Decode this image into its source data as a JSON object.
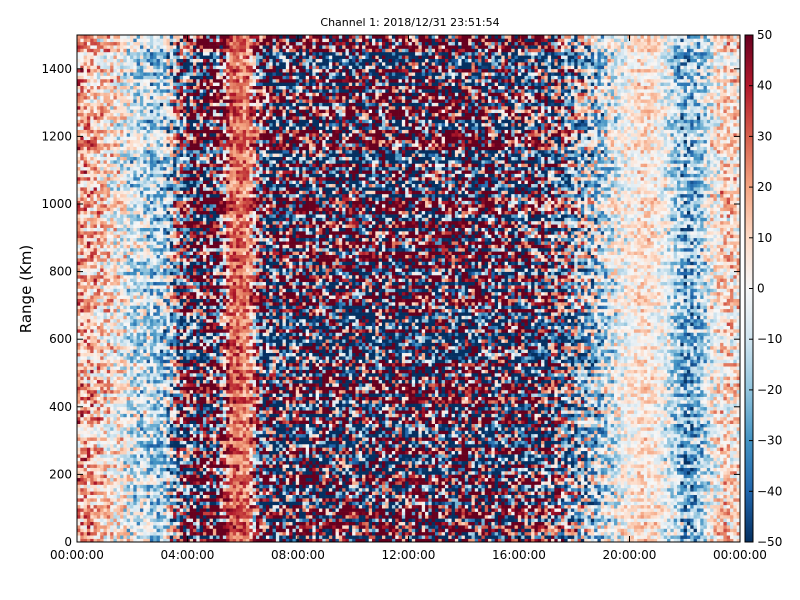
{
  "chart_data": {
    "type": "heatmap",
    "title": "Channel 1: 2018/12/31 23:51:54",
    "xlabel": "",
    "ylabel": "Range (Km)",
    "xlim": [
      "00:00:00",
      "24:00:00"
    ],
    "ylim": [
      0,
      1500
    ],
    "clim": [
      -50,
      50
    ],
    "colormap": "RdBu_r",
    "x_ticks": [
      "00:00:00",
      "04:00:00",
      "08:00:00",
      "12:00:00",
      "16:00:00",
      "20:00:00",
      "00:00:00"
    ],
    "x_tick_hours": [
      0,
      4,
      8,
      12,
      16,
      20,
      24
    ],
    "y_ticks": [
      0,
      200,
      400,
      600,
      800,
      1000,
      1200,
      1400
    ],
    "colorbar_ticks": [
      -50,
      -40,
      -30,
      -20,
      -10,
      0,
      10,
      20,
      30,
      40,
      50
    ],
    "grid": false,
    "mean_value_by_hour": [
      {
        "hour": 0.0,
        "value": 18
      },
      {
        "hour": 0.5,
        "value": 15
      },
      {
        "hour": 1.0,
        "value": 8
      },
      {
        "hour": 1.5,
        "value": 2
      },
      {
        "hour": 2.0,
        "value": -8
      },
      {
        "hour": 2.5,
        "value": -12
      },
      {
        "hour": 3.0,
        "value": -18
      },
      {
        "hour": 3.5,
        "value": -10
      },
      {
        "hour": 4.0,
        "value": 5
      },
      {
        "hour": 4.5,
        "value": 12
      },
      {
        "hour": 5.0,
        "value": 20
      },
      {
        "hour": 5.5,
        "value": 28
      },
      {
        "hour": 5.8,
        "value": 30
      },
      {
        "hour": 6.2,
        "value": 24
      },
      {
        "hour": 6.6,
        "value": 10
      },
      {
        "hour": 7.0,
        "value": -5
      },
      {
        "hour": 8.0,
        "value": 2
      },
      {
        "hour": 10.0,
        "value": 0
      },
      {
        "hour": 12.0,
        "value": 3
      },
      {
        "hour": 14.0,
        "value": 5
      },
      {
        "hour": 16.0,
        "value": 0
      },
      {
        "hour": 17.0,
        "value": -6
      },
      {
        "hour": 18.0,
        "value": -10
      },
      {
        "hour": 18.5,
        "value": -15
      },
      {
        "hour": 19.0,
        "value": -12
      },
      {
        "hour": 20.0,
        "value": 2
      },
      {
        "hour": 20.5,
        "value": 8
      },
      {
        "hour": 21.0,
        "value": 3
      },
      {
        "hour": 21.5,
        "value": -10
      },
      {
        "hour": 22.0,
        "value": -25
      },
      {
        "hour": 22.5,
        "value": -20
      },
      {
        "hour": 23.0,
        "value": 0
      },
      {
        "hour": 23.5,
        "value": 10
      },
      {
        "hour": 24.0,
        "value": 5
      }
    ],
    "spread_by_hour": [
      {
        "hour": 0.0,
        "value": 20
      },
      {
        "hour": 3.0,
        "value": 20
      },
      {
        "hour": 3.5,
        "value": 40
      },
      {
        "hour": 4.0,
        "value": 75
      },
      {
        "hour": 5.0,
        "value": 85
      },
      {
        "hour": 5.6,
        "value": 12
      },
      {
        "hour": 6.2,
        "value": 12
      },
      {
        "hour": 6.8,
        "value": 85
      },
      {
        "hour": 8.0,
        "value": 90
      },
      {
        "hour": 12.0,
        "value": 90
      },
      {
        "hour": 16.0,
        "value": 85
      },
      {
        "hour": 17.0,
        "value": 70
      },
      {
        "hour": 18.0,
        "value": 45
      },
      {
        "hour": 19.0,
        "value": 25
      },
      {
        "hour": 20.0,
        "value": 12
      },
      {
        "hour": 21.0,
        "value": 12
      },
      {
        "hour": 22.0,
        "value": 22
      },
      {
        "hour": 23.0,
        "value": 18
      },
      {
        "hour": 24.0,
        "value": 18
      }
    ]
  }
}
